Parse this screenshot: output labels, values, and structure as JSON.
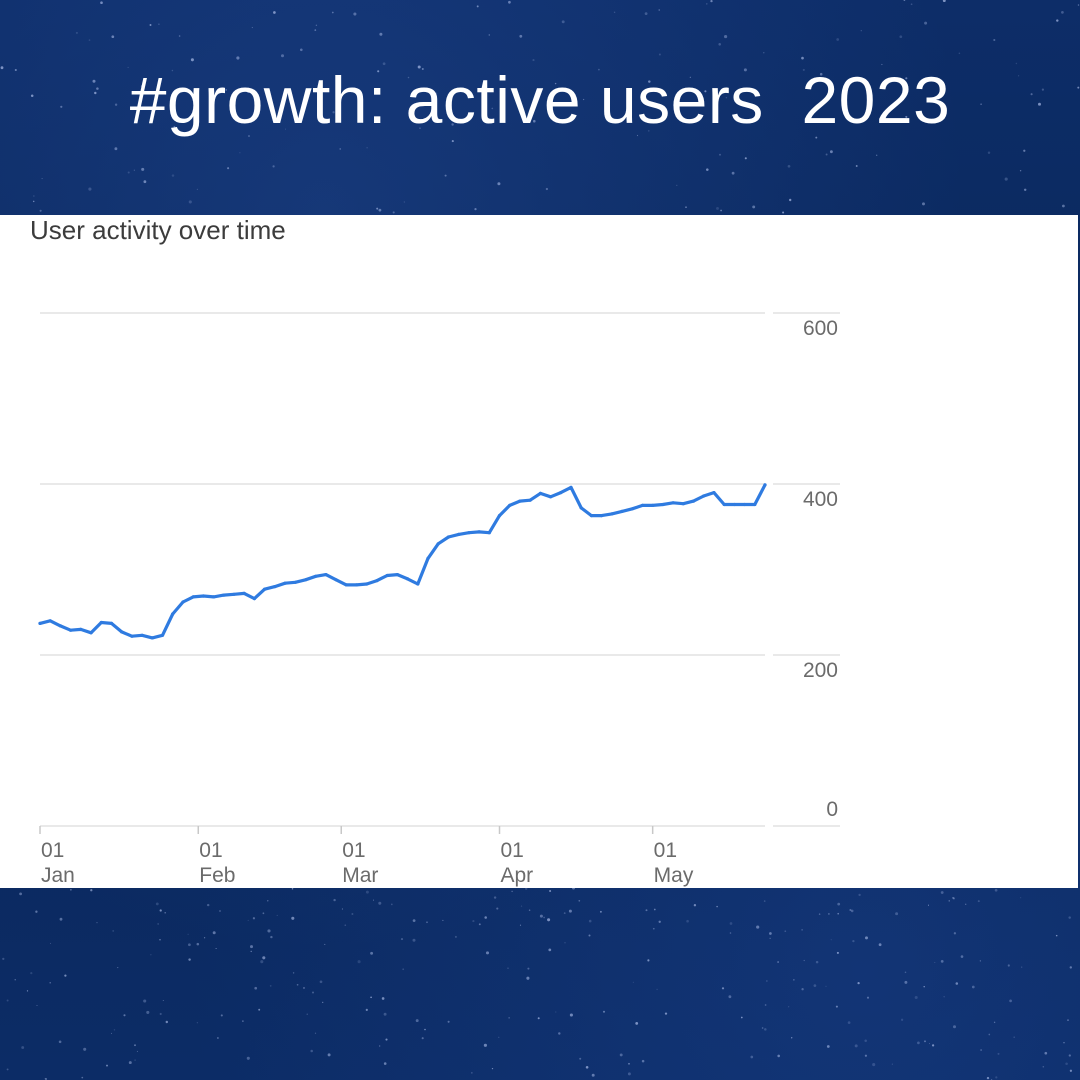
{
  "header": {
    "title": "#growth: active users  2023"
  },
  "chart": {
    "title": "User activity over time"
  },
  "colors": {
    "line": "#2f7be0",
    "grid": "#e2e2e2",
    "background": "#0b2a63"
  },
  "chart_data": {
    "type": "line",
    "title": "User activity over time",
    "xlabel": "",
    "ylabel": "",
    "ylim": [
      0,
      600
    ],
    "y_ticks": [
      0,
      200,
      400,
      600
    ],
    "x_ticks": [
      {
        "day": 1,
        "label_top": "01",
        "label_bottom": "Jan"
      },
      {
        "day": 32,
        "label_top": "01",
        "label_bottom": "Feb"
      },
      {
        "day": 60,
        "label_top": "01",
        "label_bottom": "Mar"
      },
      {
        "day": 91,
        "label_top": "01",
        "label_bottom": "Apr"
      },
      {
        "day": 121,
        "label_top": "01",
        "label_bottom": "May"
      }
    ],
    "x_range": [
      1,
      143
    ],
    "series": [
      {
        "name": "Active users",
        "x": [
          1,
          3,
          5,
          7,
          9,
          11,
          13,
          15,
          17,
          19,
          21,
          23,
          25,
          27,
          29,
          31,
          33,
          35,
          37,
          39,
          41,
          43,
          45,
          47,
          49,
          51,
          53,
          55,
          57,
          59,
          61,
          63,
          65,
          67,
          69,
          71,
          73,
          75,
          77,
          79,
          81,
          83,
          85,
          87,
          89,
          91,
          93,
          95,
          97,
          99,
          101,
          103,
          105,
          107,
          109,
          111,
          113,
          115,
          117,
          119,
          121,
          123,
          125,
          127,
          129,
          131,
          133,
          135,
          137,
          139,
          141,
          143
        ],
        "values": [
          237,
          240,
          234,
          229,
          230,
          226,
          238,
          237,
          227,
          222,
          223,
          220,
          223,
          248,
          262,
          268,
          269,
          268,
          270,
          271,
          272,
          266,
          277,
          280,
          284,
          285,
          288,
          292,
          294,
          288,
          282,
          282,
          283,
          287,
          293,
          294,
          289,
          283,
          313,
          330,
          338,
          341,
          343,
          344,
          343,
          363,
          375,
          380,
          381,
          389,
          385,
          390,
          396,
          372,
          363,
          363,
          365,
          368,
          371,
          375,
          375,
          376,
          378,
          377,
          380,
          386,
          390,
          376,
          376,
          376,
          376,
          399
        ]
      }
    ]
  }
}
